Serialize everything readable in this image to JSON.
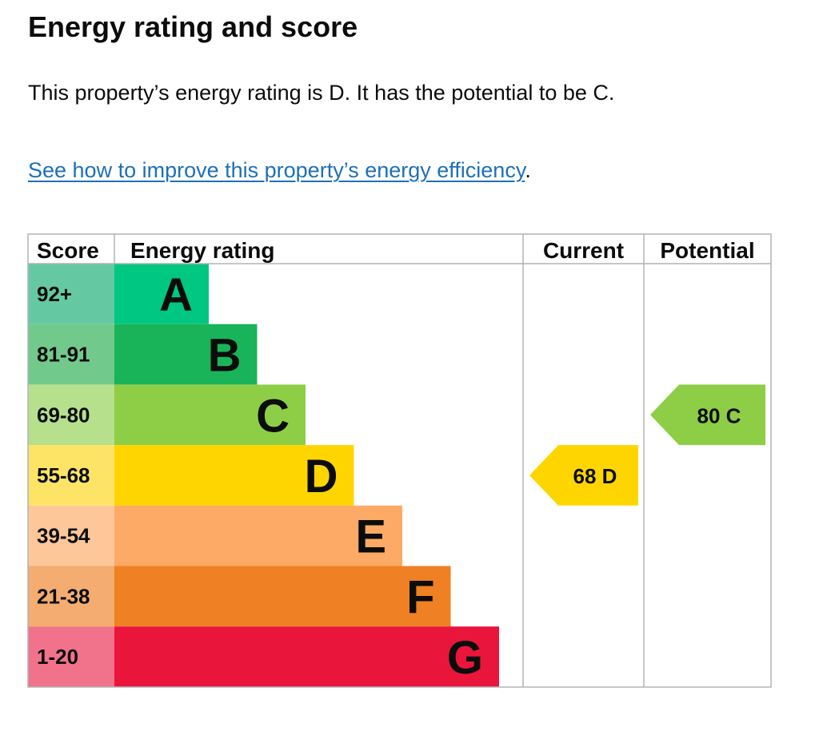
{
  "page": {
    "title": "Energy rating and score",
    "summary": "This property’s energy rating is D. It has the potential to be C.",
    "improve_link": "See how to improve this property’s energy efficiency",
    "improve_suffix": "."
  },
  "chart_data": {
    "type": "bar",
    "columns": [
      "Score",
      "Energy rating",
      "Current",
      "Potential"
    ],
    "bands": [
      {
        "band": "A",
        "score_range": "92+",
        "color": "#00c781",
        "score_color": "#64c9a3"
      },
      {
        "band": "B",
        "score_range": "81-91",
        "color": "#19b459",
        "score_color": "#72c98c"
      },
      {
        "band": "C",
        "score_range": "69-80",
        "color": "#8dce46",
        "score_color": "#b6e08c"
      },
      {
        "band": "D",
        "score_range": "55-68",
        "color": "#ffd500",
        "score_color": "#fee466"
      },
      {
        "band": "E",
        "score_range": "39-54",
        "color": "#fcaa65",
        "score_color": "#fdc79a"
      },
      {
        "band": "F",
        "score_range": "21-38",
        "color": "#ef8023",
        "score_color": "#f4ac71"
      },
      {
        "band": "G",
        "score_range": "1-20",
        "color": "#e9153b",
        "score_color": "#f1728b"
      }
    ],
    "current": {
      "score": 68,
      "band": "D",
      "label": "68  D",
      "color": "#ffd500"
    },
    "potential": {
      "score": 80,
      "band": "C",
      "label": "80  C",
      "color": "#8dce46"
    },
    "border_color": "#b1b4b6"
  }
}
